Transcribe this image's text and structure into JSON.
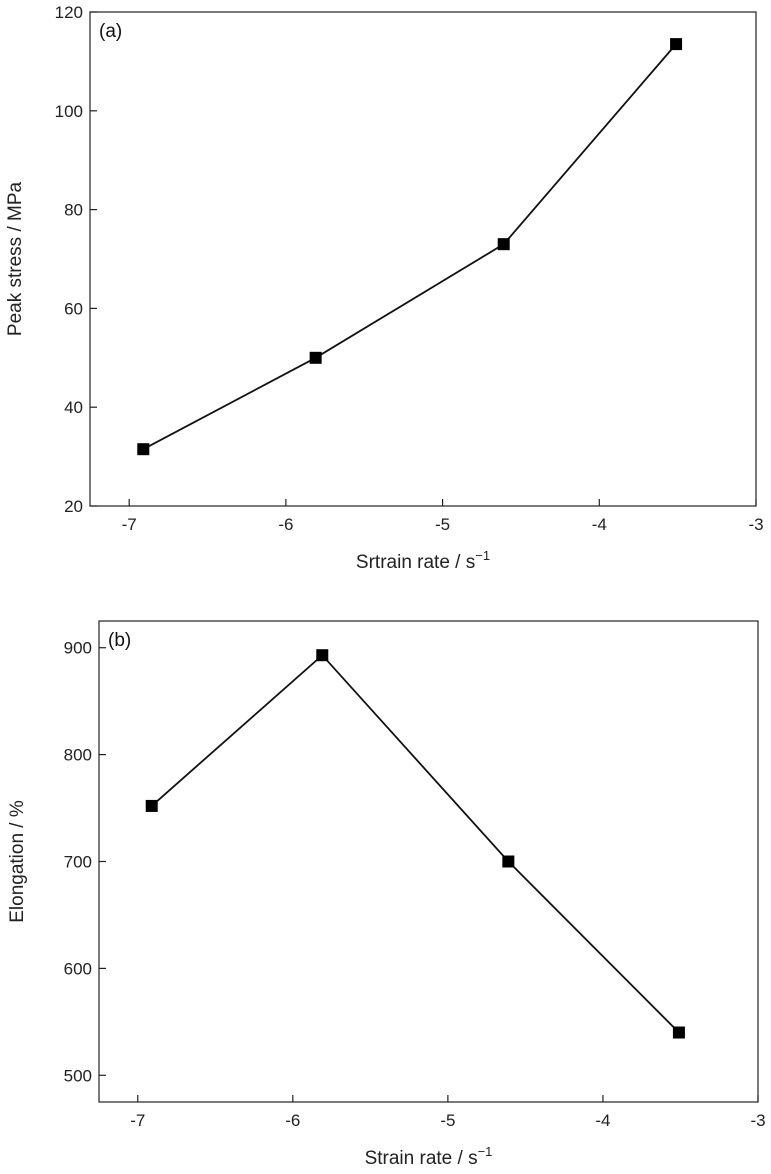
{
  "chart_data": [
    {
      "type": "line",
      "panel_label": "(a)",
      "xlabel": "Srtrain rate / s",
      "xlabel_sup": "−1",
      "ylabel": "Peak stress / MPa",
      "xlim": [
        -7.25,
        -3
      ],
      "ylim": [
        20,
        120
      ],
      "xticks": [
        -7,
        -6,
        -5,
        -4,
        -3
      ],
      "yticks": [
        20,
        40,
        60,
        80,
        100,
        120
      ],
      "xtick_labels": [
        "-7",
        "-6",
        "-5",
        "-4",
        "-3"
      ],
      "ytick_labels": [
        "20",
        "40",
        "60",
        "80",
        "100",
        "120"
      ],
      "marker": "square",
      "series": [
        {
          "x": [
            -6.91,
            -5.81,
            -4.61,
            -3.51
          ],
          "y": [
            31.5,
            50,
            73,
            113.5
          ]
        }
      ]
    },
    {
      "type": "line",
      "panel_label": "(b)",
      "xlabel": "Strain rate / s",
      "xlabel_sup": "−1",
      "ylabel": "Elongation / %",
      "xlim": [
        -7.25,
        -3
      ],
      "ylim": [
        475,
        925
      ],
      "xticks": [
        -7,
        -6,
        -5,
        -4,
        -3
      ],
      "yticks": [
        500,
        600,
        700,
        800,
        900
      ],
      "xtick_labels": [
        "-7",
        "-6",
        "-5",
        "-4",
        "-3"
      ],
      "ytick_labels": [
        "500",
        "600",
        "700",
        "800",
        "900"
      ],
      "marker": "square",
      "series": [
        {
          "x": [
            -6.91,
            -5.81,
            -4.61,
            -3.51
          ],
          "y": [
            752,
            893,
            700,
            540
          ]
        }
      ]
    }
  ]
}
